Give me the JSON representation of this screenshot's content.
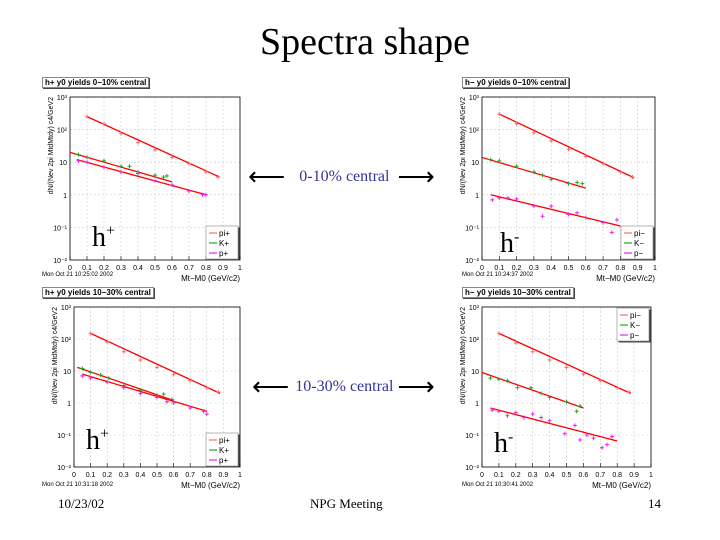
{
  "slide": {
    "title": "Spectra shape",
    "footer_date": "10/23/02",
    "footer_center": "NPG Meeting",
    "page_number": "14"
  },
  "annotations": {
    "central_0_10": "0-10% central",
    "central_10_30": "10-30% central"
  },
  "colors": {
    "pi": "#ff6a6a",
    "K": "#22aa22",
    "p": "#ee22ee",
    "fit": "#ff0000",
    "annotation": "#333399"
  },
  "chart_data": [
    {
      "type": "scatter",
      "title": "h+ y0 yields 0−10% central",
      "label": "h",
      "charge": "+",
      "timestamp": "Mon Oct 21 10:25:02 2002",
      "xlabel": "Mt−M0 (GeV/c2)",
      "ylabel": "dN/(Nev 2pi MtdMtdy) c4/GeV2",
      "xlim": [
        0,
        1
      ],
      "ylim": [
        0.01,
        1000
      ],
      "yscale": "log",
      "grid": true,
      "legend": "bottom-right",
      "xticks": [
        "0",
        "0.1",
        "0.2",
        "0.3",
        "0.4",
        "0.5",
        "0.6",
        "0.7",
        "0.8",
        "0.9",
        "1"
      ],
      "yticks": [
        "10⁻²",
        "10⁻¹",
        "1",
        "10",
        "10²",
        "10³"
      ],
      "series": [
        {
          "name": "pi+",
          "x": [
            0.1,
            0.2,
            0.3,
            0.4,
            0.5,
            0.6,
            0.7,
            0.8,
            0.87
          ],
          "y": [
            250,
            150,
            75,
            40,
            24,
            14,
            9,
            5,
            3.5
          ],
          "fit": [
            [
              0.1,
              250
            ],
            [
              0.88,
              3.5
            ]
          ]
        },
        {
          "name": "K+",
          "x": [
            0.05,
            0.1,
            0.2,
            0.3,
            0.35,
            0.4,
            0.5,
            0.55,
            0.57
          ],
          "y": [
            17,
            14,
            11,
            7.5,
            7.5,
            5,
            4,
            3.5,
            3.8
          ],
          "fit": [
            [
              0,
              20
            ],
            [
              0.6,
              2.5
            ]
          ]
        },
        {
          "name": "p+",
          "x": [
            0.05,
            0.1,
            0.2,
            0.3,
            0.4,
            0.5,
            0.6,
            0.7,
            0.78,
            0.8
          ],
          "y": [
            11,
            10,
            7,
            5,
            4.5,
            2.7,
            2,
            1.3,
            1,
            1
          ],
          "fit": [
            [
              0.04,
              12
            ],
            [
              0.8,
              1
            ]
          ]
        }
      ]
    },
    {
      "type": "scatter",
      "title": "h− y0 yields 0−10% central",
      "label": "h",
      "charge": "-",
      "timestamp": "Mon Oct 21 10:24:37 2002",
      "xlabel": "Mt−M0 (GeV/c2)",
      "ylabel": "dN/(Nev 2pi MtdMtdy) c4/GeV2",
      "xlim": [
        0,
        1
      ],
      "ylim": [
        0.01,
        1000
      ],
      "yscale": "log",
      "grid": true,
      "legend": "bottom-right",
      "xticks": [
        "0",
        "0.1",
        "0.2",
        "0.3",
        "0.4",
        "0.5",
        "0.6",
        "0.7",
        "0.8",
        "0.9",
        "1"
      ],
      "yticks": [
        "10⁻²",
        "10⁻¹",
        "1",
        "10",
        "10²",
        "10³"
      ],
      "series": [
        {
          "name": "pi−",
          "x": [
            0.1,
            0.2,
            0.3,
            0.4,
            0.5,
            0.6,
            0.7,
            0.8,
            0.87
          ],
          "y": [
            300,
            150,
            80,
            45,
            25,
            15,
            9,
            5,
            3.5
          ],
          "fit": [
            [
              0.1,
              300
            ],
            [
              0.88,
              3.3
            ]
          ]
        },
        {
          "name": "K−",
          "x": [
            0.05,
            0.1,
            0.2,
            0.3,
            0.35,
            0.4,
            0.5,
            0.55,
            0.58
          ],
          "y": [
            12,
            11,
            7.5,
            5,
            4,
            3,
            2.2,
            2.4,
            2.2
          ],
          "fit": [
            [
              0,
              14
            ],
            [
              0.6,
              1.6
            ]
          ]
        },
        {
          "name": "p−",
          "x": [
            0.06,
            0.1,
            0.15,
            0.2,
            0.3,
            0.35,
            0.4,
            0.5,
            0.55,
            0.6,
            0.7,
            0.75,
            0.78
          ],
          "y": [
            0.7,
            0.8,
            0.8,
            0.75,
            0.45,
            0.22,
            0.45,
            0.25,
            0.28,
            0.2,
            0.14,
            0.07,
            0.17
          ],
          "fit": [
            [
              0.05,
              1.0
            ],
            [
              0.8,
              0.11
            ]
          ]
        }
      ]
    },
    {
      "type": "scatter",
      "title": "h+ y0 yields 10−30% central",
      "label": "h",
      "charge": "+",
      "timestamp": "Mon Oct 21 10:31:18 2002",
      "xlabel": "Mt−M0 (GeV/c2)",
      "ylabel": "dN/(Nev 2pi MtdMtdy) c4/GeV2",
      "xlim": [
        0,
        1
      ],
      "ylim": [
        0.01,
        1000
      ],
      "yscale": "log",
      "grid": true,
      "legend": "bottom-right",
      "xticks": [
        "0",
        "0.1",
        "0.2",
        "0.3",
        "0.4",
        "0.5",
        "0.6",
        "0.7",
        "0.8",
        "0.9",
        "1"
      ],
      "yticks": [
        "10⁻²",
        "10⁻¹",
        "1",
        "10",
        "10²",
        "10³"
      ],
      "series": [
        {
          "name": "pi+",
          "x": [
            0.1,
            0.2,
            0.3,
            0.4,
            0.5,
            0.6,
            0.7,
            0.8,
            0.87
          ],
          "y": [
            150,
            80,
            40,
            22,
            13,
            8,
            5,
            3,
            2.2
          ],
          "fit": [
            [
              0.1,
              150
            ],
            [
              0.88,
              2
            ]
          ]
        },
        {
          "name": "K+",
          "x": [
            0.05,
            0.1,
            0.16,
            0.21,
            0.3,
            0.4,
            0.5,
            0.54,
            0.56,
            0.59
          ],
          "y": [
            12,
            9,
            7.5,
            6,
            3.5,
            2.5,
            1.7,
            1.9,
            1.3,
            1.3
          ],
          "fit": [
            [
              0.02,
              13
            ],
            [
              0.6,
              1.2
            ]
          ]
        },
        {
          "name": "p+",
          "x": [
            0.05,
            0.1,
            0.2,
            0.3,
            0.4,
            0.5,
            0.56,
            0.6,
            0.7,
            0.78,
            0.8
          ],
          "y": [
            7,
            6,
            4.5,
            3,
            2,
            1.5,
            1.1,
            1,
            0.7,
            0.55,
            0.45
          ],
          "fit": [
            [
              0.05,
              8
            ],
            [
              0.8,
              0.55
            ]
          ]
        }
      ]
    },
    {
      "type": "scatter",
      "title": "h− y0 yields 10−30% central",
      "label": "h",
      "charge": "-",
      "timestamp": "Mon Oct 21 10:30:41 2002",
      "xlabel": "Mt−M0 (GeV/c2)",
      "ylabel": "dN/(Nev 2pi MtdMtdy) c4/GeV2",
      "xlim": [
        0,
        1
      ],
      "ylim": [
        0.01,
        1000
      ],
      "yscale": "log",
      "grid": true,
      "legend": "top-right",
      "xticks": [
        "0",
        "0.1",
        "0.2",
        "0.3",
        "0.4",
        "0.5",
        "0.6",
        "0.7",
        "0.8",
        "0.9",
        "1"
      ],
      "yticks": [
        "10⁻²",
        "10⁻¹",
        "1",
        "10",
        "10²",
        "10³"
      ],
      "series": [
        {
          "name": "pi−",
          "x": [
            0.1,
            0.2,
            0.3,
            0.4,
            0.5,
            0.6,
            0.7,
            0.8,
            0.87
          ],
          "y": [
            150,
            75,
            40,
            22,
            13,
            8,
            5,
            3,
            2.2
          ],
          "fit": [
            [
              0.1,
              150
            ],
            [
              0.88,
              2
            ]
          ]
        },
        {
          "name": "K−",
          "x": [
            0.05,
            0.1,
            0.15,
            0.21,
            0.29,
            0.35,
            0.4,
            0.5,
            0.56,
            0.58
          ],
          "y": [
            6,
            5.5,
            5,
            3,
            3,
            2,
            1.5,
            1.1,
            0.55,
            0.8
          ],
          "fit": [
            [
              0,
              9
            ],
            [
              0.6,
              0.7
            ]
          ]
        },
        {
          "name": "p−",
          "x": [
            0.06,
            0.1,
            0.15,
            0.2,
            0.25,
            0.3,
            0.35,
            0.4,
            0.49,
            0.55,
            0.58,
            0.62,
            0.66,
            0.71,
            0.74,
            0.77
          ],
          "y": [
            0.6,
            0.55,
            0.4,
            0.5,
            0.35,
            0.45,
            0.35,
            0.28,
            0.11,
            0.2,
            0.07,
            0.1,
            0.08,
            0.04,
            0.05,
            0.09
          ],
          "fit": [
            [
              0.05,
              0.7
            ],
            [
              0.8,
              0.065
            ]
          ]
        }
      ]
    }
  ]
}
